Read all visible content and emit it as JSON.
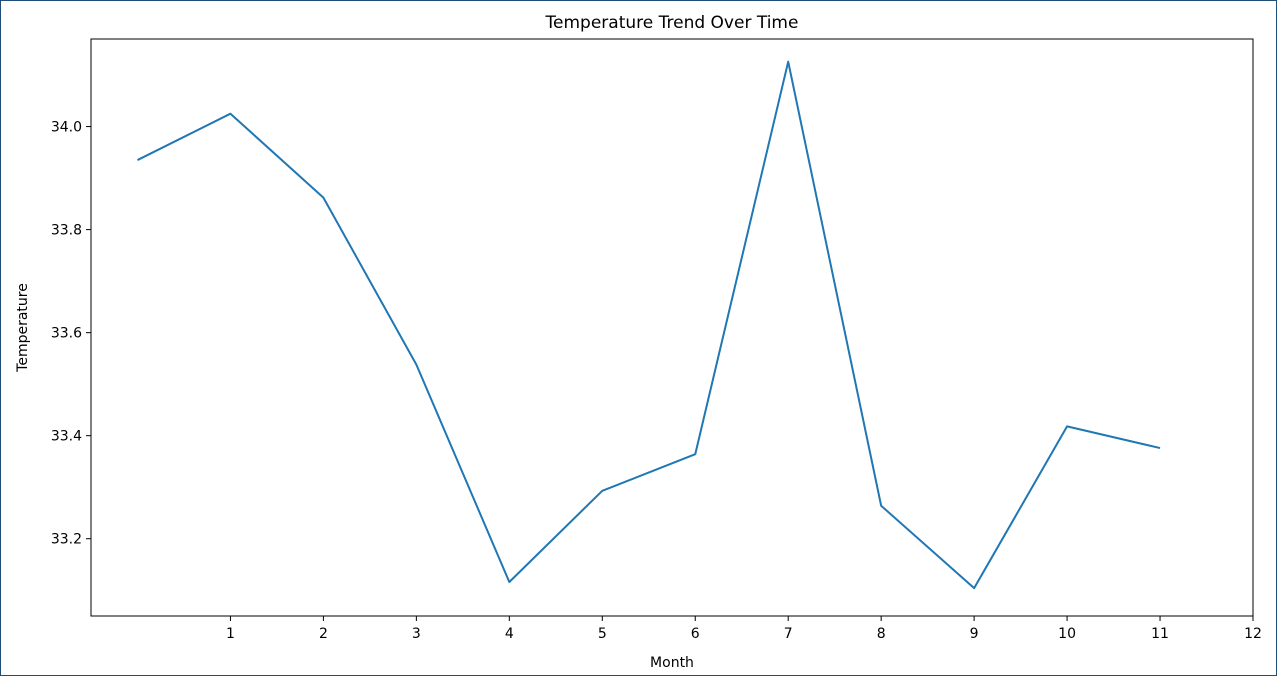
{
  "chart_data": {
    "type": "line",
    "title": "Temperature Trend Over Time",
    "xlabel": "Month",
    "ylabel": "Temperature",
    "xlim": [
      -0.5,
      12
    ],
    "ylim": [
      33.05,
      34.17
    ],
    "xticks": [
      1,
      2,
      3,
      4,
      5,
      6,
      7,
      8,
      9,
      10,
      11,
      12
    ],
    "yticks": [
      33.2,
      33.4,
      33.6,
      33.8,
      34.0
    ],
    "ytick_labels": [
      "33.2",
      "33.4",
      "33.6",
      "33.8",
      "34.0"
    ],
    "grid": false,
    "series": [
      {
        "color": "#1f77b4",
        "x": [
          0,
          1,
          2,
          3,
          4,
          5,
          6,
          7,
          8,
          9,
          10,
          11
        ],
        "values": [
          33.935,
          34.025,
          33.862,
          33.538,
          33.116,
          33.293,
          33.364,
          34.126,
          33.264,
          33.104,
          33.418,
          33.376
        ]
      }
    ]
  }
}
